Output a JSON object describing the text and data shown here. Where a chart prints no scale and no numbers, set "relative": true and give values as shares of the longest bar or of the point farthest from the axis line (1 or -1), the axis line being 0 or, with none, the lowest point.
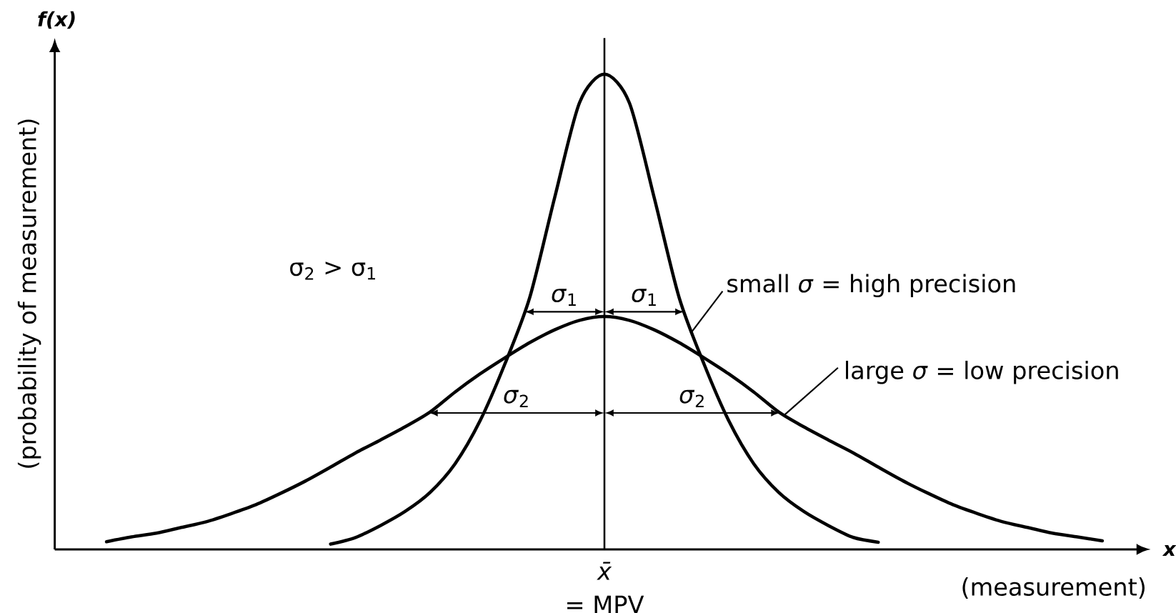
{
  "chart_data": {
    "type": "line",
    "relative": true,
    "xlabel": "(measurement)",
    "ylabel": "(probability of measurement)",
    "categories": [
      null,
      null,
      null,
      null,
      null,
      null,
      null,
      null,
      null,
      null,
      null,
      null,
      null,
      null,
      null,
      null,
      null,
      null,
      null,
      null,
      null,
      null,
      null,
      null,
      null,
      null,
      null,
      null,
      null,
      null,
      null,
      null,
      null,
      null,
      null,
      null,
      null,
      null,
      null,
      null,
      null
    ],
    "series": [
      {
        "name": "small *σ* = high precision",
        "color": "#000000",
        "values": [
          null,
          null,
          null,
          null,
          null,
          null,
          null,
          null,
          null,
          0.011,
          0.025,
          0.05,
          0.08,
          0.12,
          0.18,
          0.27,
          0.39,
          0.53,
          0.74,
          0.94,
          1,
          0.94,
          0.74,
          0.53,
          0.39,
          0.27,
          0.18,
          0.12,
          0.08,
          0.05,
          0.025,
          0.015,
          null,
          null,
          null,
          null,
          null,
          null,
          null,
          null,
          null
        ]
      },
      {
        "name": "large *σ* = low precision",
        "color": "#000000",
        "values": [
          0.016,
          0.026,
          0.034,
          0.046,
          0.058,
          0.075,
          0.094,
          0.118,
          0.144,
          0.173,
          0.203,
          0.23,
          0.258,
          0.289,
          0.331,
          0.369,
          0.403,
          0.435,
          0.462,
          0.482,
          0.49,
          0.482,
          0.462,
          0.435,
          0.403,
          0.369,
          0.331,
          0.289,
          0.258,
          0.23,
          0.203,
          0.173,
          0.144,
          0.118,
          0.094,
          0.075,
          0.058,
          0.046,
          0.034,
          0.026,
          0.018
        ]
      }
    ],
    "annotations": [
      "f(x)",
      "x",
      "σ$_{2}$ > σ$_{1}$",
      "x̄",
      "= MPV",
      "*σ*$_{1}$",
      "*σ*$_{1}$",
      "*σ*$_{2}$",
      "*σ*$_{2}$"
    ]
  }
}
